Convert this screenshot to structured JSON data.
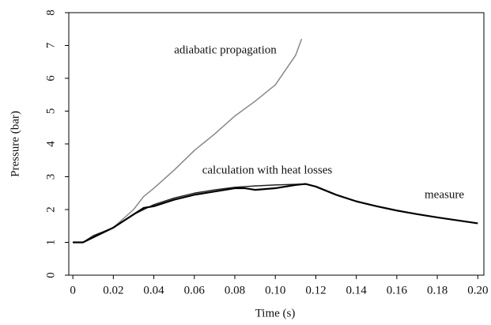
{
  "chart_data": {
    "type": "line",
    "xlabel": "Time (s)",
    "ylabel": "Pressure (bar)",
    "xlim": [
      -0.002,
      0.203
    ],
    "ylim": [
      0,
      8
    ],
    "xticks": [
      0,
      0.02,
      0.04,
      0.06,
      0.08,
      {
        "value": 0.1,
        "label": "0.10"
      },
      0.12,
      0.14,
      0.16,
      0.18,
      {
        "value": 0.2,
        "label": "0.20"
      }
    ],
    "yticks": [
      0,
      1,
      2,
      3,
      4,
      5,
      6,
      7,
      8
    ],
    "grid": false,
    "series": [
      {
        "name": "adiabatic propagation",
        "color": "#888888",
        "x": [
          0,
          0.005,
          0.01,
          0.02,
          0.03,
          0.035,
          0.04,
          0.05,
          0.06,
          0.07,
          0.08,
          0.09,
          0.1,
          0.11,
          0.113
        ],
        "values": [
          1,
          1,
          1.15,
          1.45,
          2.0,
          2.4,
          2.65,
          3.2,
          3.8,
          4.3,
          4.85,
          5.3,
          5.8,
          6.7,
          7.2
        ]
      },
      {
        "name": "calculation with heat losses",
        "color": "#222222",
        "x": [
          0,
          0.005,
          0.01,
          0.02,
          0.03,
          0.04,
          0.05,
          0.06,
          0.07,
          0.08,
          0.09,
          0.1,
          0.11,
          0.115
        ],
        "values": [
          1,
          1,
          1.2,
          1.45,
          1.85,
          2.15,
          2.35,
          2.5,
          2.6,
          2.68,
          2.72,
          2.75,
          2.77,
          2.78
        ]
      },
      {
        "name": "measure",
        "color": "#000000",
        "x": [
          0,
          0.005,
          0.01,
          0.02,
          0.03,
          0.035,
          0.04,
          0.05,
          0.06,
          0.07,
          0.08,
          0.085,
          0.09,
          0.1,
          0.11,
          0.115,
          0.12,
          0.13,
          0.14,
          0.15,
          0.16,
          0.17,
          0.18,
          0.19,
          0.2
        ],
        "values": [
          1,
          1,
          1.15,
          1.45,
          1.85,
          2.05,
          2.1,
          2.3,
          2.45,
          2.55,
          2.65,
          2.65,
          2.6,
          2.65,
          2.75,
          2.78,
          2.7,
          2.45,
          2.25,
          2.1,
          1.97,
          1.86,
          1.76,
          1.67,
          1.58
        ]
      }
    ]
  }
}
